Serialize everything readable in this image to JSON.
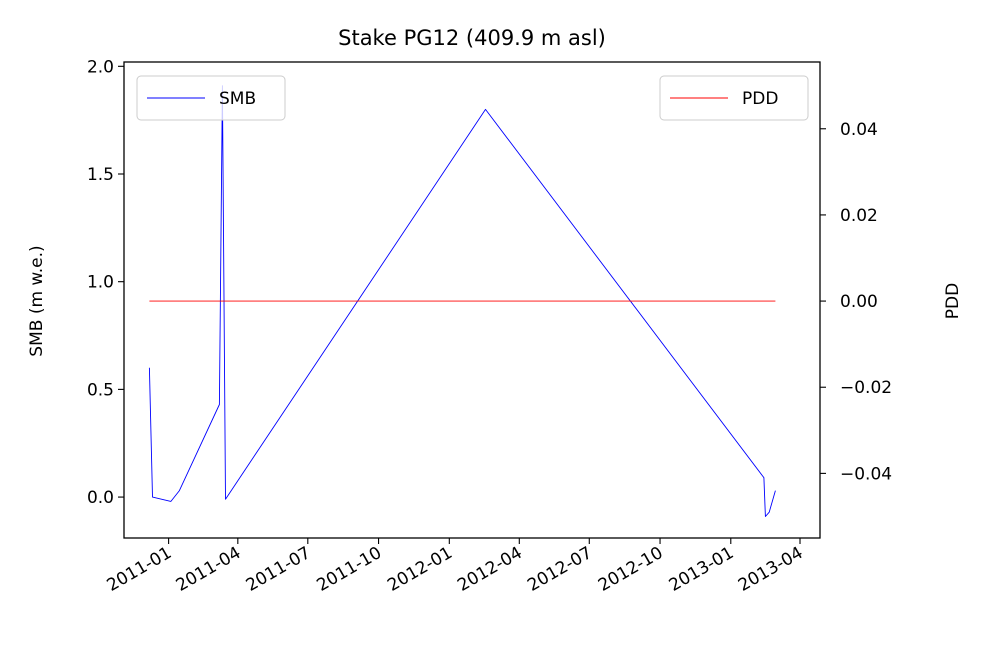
{
  "chart_data": {
    "type": "line",
    "title": "Stake PG12 (409.9 m asl)",
    "xlabel": "",
    "ylabel": "SMB (m w.e.)",
    "ylabel_right": "PDD",
    "x_ticks": [
      "2011-01",
      "2011-04",
      "2011-07",
      "2011-10",
      "2012-01",
      "2012-04",
      "2012-07",
      "2012-10",
      "2013-01",
      "2013-04"
    ],
    "y_ticks": [
      "0.0",
      "0.5",
      "1.0",
      "1.5",
      "2.0"
    ],
    "y_ticks_right": [
      "−0.04",
      "−0.02",
      "0.00",
      "0.02",
      "0.04"
    ],
    "ylim": [
      -0.19,
      2.02
    ],
    "ylim_right": [
      -0.055,
      0.0555
    ],
    "xlim": [
      "2010-11-04",
      "2013-04-27"
    ],
    "grid": false,
    "series": [
      {
        "name": "SMB",
        "axis": "left",
        "color": "#0000ff",
        "legend_position": "upper left",
        "x": [
          "2010-12-07",
          "2010-12-11",
          "2011-01-04",
          "2011-01-15",
          "2011-03-08",
          "2011-03-12",
          "2011-03-16",
          "2012-02-17",
          "2013-02-13",
          "2013-02-15",
          "2013-02-20",
          "2013-02-28"
        ],
        "values": [
          0.6,
          0.0,
          -0.02,
          0.03,
          0.43,
          1.91,
          -0.01,
          1.8,
          0.09,
          -0.09,
          -0.07,
          0.03
        ]
      },
      {
        "name": "PDD",
        "axis": "right",
        "color": "#ff0000",
        "legend_position": "upper right",
        "x": [
          "2010-12-07",
          "2013-02-28"
        ],
        "values": [
          0.0,
          0.0
        ]
      }
    ]
  }
}
